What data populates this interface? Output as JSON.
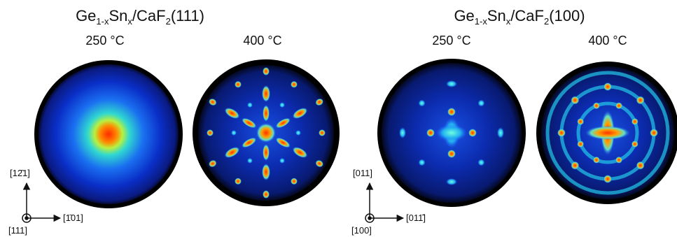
{
  "panels": [
    {
      "title_parts": [
        "Ge",
        "1-x",
        "Sn",
        "x",
        "/CaF",
        "2",
        "(111)"
      ],
      "temps": [
        "250 °C",
        "400 °C"
      ],
      "axes": {
        "up": "[12̄1]",
        "right": "[1̄01]",
        "normal": "[111]"
      }
    },
    {
      "title_parts": [
        "Ge",
        "1-x",
        "Sn",
        "x",
        "/CaF",
        "2",
        "(100)"
      ],
      "temps": [
        "250 °C",
        "400 °C"
      ],
      "axes": {
        "up": "[011]",
        "right": "[011̄]",
        "normal": "[100]"
      }
    }
  ]
}
